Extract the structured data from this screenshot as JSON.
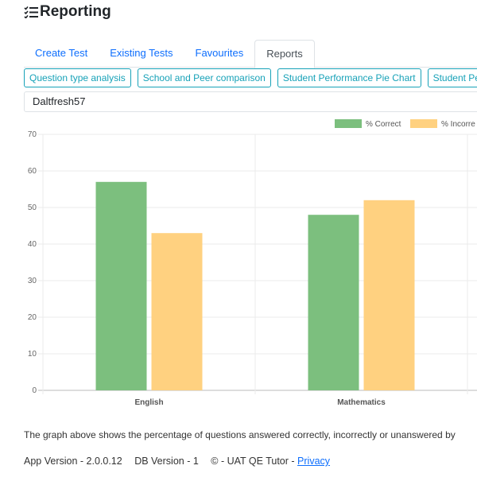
{
  "header": {
    "title": "Reporting",
    "icon": "list-check-icon"
  },
  "tabs": [
    {
      "label": "Create Test",
      "active": false
    },
    {
      "label": "Existing Tests",
      "active": false
    },
    {
      "label": "Favourites",
      "active": false
    },
    {
      "label": "Reports",
      "active": true
    }
  ],
  "report_buttons": [
    "Question type analysis",
    "School and Peer comparison",
    "Student Performance Pie Chart",
    "Student Per"
  ],
  "student": {
    "value": "Daltfresh57"
  },
  "chart_data": {
    "type": "bar",
    "categories": [
      "English",
      "Mathematics"
    ],
    "series": [
      {
        "name": "% Correct",
        "values": [
          57,
          48
        ],
        "color": "#7cbf7e"
      },
      {
        "name": "% Incorre",
        "values": [
          43,
          52
        ],
        "color": "#ffd180"
      }
    ],
    "ylim": [
      0,
      70
    ],
    "yticks": [
      0,
      10,
      20,
      30,
      40,
      50,
      60,
      70
    ],
    "grid": true,
    "legend_position": "top-right"
  },
  "description": "The graph above shows the percentage of questions answered correctly, incorrectly or unanswered by",
  "footer": {
    "app_version": "App Version - 2.0.0.12",
    "db_version": "DB Version - 1",
    "copyright": "© - UAT QE Tutor -",
    "privacy_link": "Privacy"
  }
}
